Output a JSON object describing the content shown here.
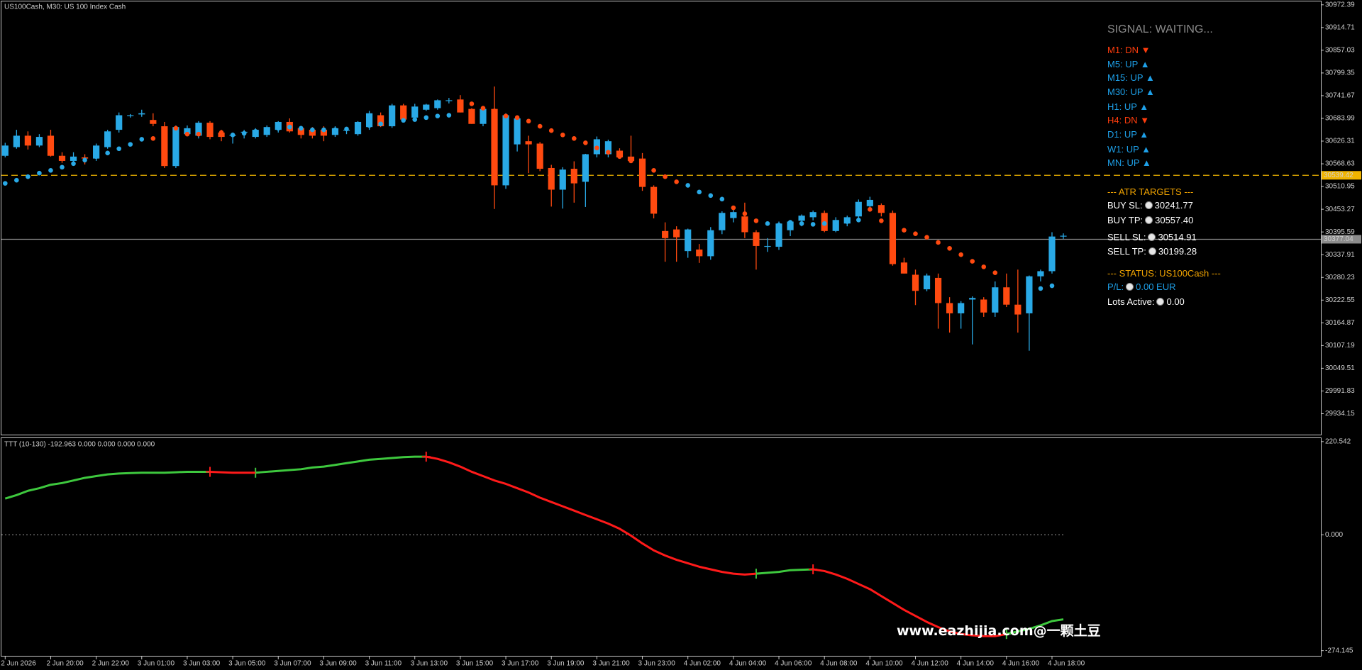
{
  "chart_data": [
    {
      "type": "candlestick",
      "title": "US100Cash, M30:  US 100 Index Cash",
      "categories": [
        "2 Jun 2026",
        null,
        null,
        null,
        "2 Jun 20:00",
        null,
        null,
        null,
        "2 Jun 22:00",
        null,
        null,
        null,
        "3 Jun 01:00",
        null,
        null,
        null,
        "3 Jun 03:00",
        null,
        null,
        null,
        "3 Jun 05:00",
        null,
        null,
        null,
        "3 Jun 07:00",
        null,
        null,
        null,
        "3 Jun 09:00",
        null,
        null,
        null,
        "3 Jun 11:00",
        null,
        null,
        null,
        "3 Jun 13:00",
        null,
        null,
        null,
        "3 Jun 15:00",
        null,
        null,
        null,
        "3 Jun 17:00",
        null,
        null,
        null,
        "3 Jun 19:00",
        null,
        null,
        null,
        "3 Jun 21:00",
        null,
        null,
        null,
        "3 Jun 23:00",
        null,
        null,
        null,
        "4 Jun 02:00",
        null,
        null,
        null,
        "4 Jun 04:00",
        null,
        null,
        null,
        "4 Jun 06:00",
        null,
        null,
        null,
        "4 Jun 08:00",
        null,
        null,
        null,
        "4 Jun 10:00",
        null,
        null,
        null,
        "4 Jun 12:00",
        null,
        null,
        null,
        "4 Jun 14:00",
        null,
        null,
        null,
        "4 Jun 16:00",
        null,
        null,
        null,
        "4 Jun 18:00",
        null
      ],
      "open": [
        30589,
        30611,
        30640,
        30615,
        30640,
        30589,
        30576,
        30585,
        30582,
        30611,
        30655,
        30690,
        30694,
        30680,
        30664,
        30563,
        30644,
        30640,
        30673,
        30648,
        30640,
        30648,
        30637,
        30642,
        30655,
        30675,
        30659,
        30655,
        30655,
        30642,
        30653,
        30644,
        30662,
        30692,
        30664,
        30717,
        30686,
        30706,
        30710,
        30729,
        30732,
        30708,
        30670,
        30708,
        30514,
        30618,
        30626,
        30620,
        30558,
        30503,
        30556,
        30523,
        30593,
        30593,
        30602,
        30587,
        30582,
        30510,
        30398,
        30402,
        30347,
        30351,
        30334,
        30400,
        30431,
        30435,
        30395,
        30360,
        30358,
        30400,
        30424,
        30433,
        30444,
        30398,
        30417,
        30435,
        30461,
        30464,
        30444,
        30318,
        30287,
        30250,
        30279,
        30215,
        30189,
        30224,
        30224,
        30191,
        30255,
        30211,
        30189,
        30283,
        30296,
        30384
      ],
      "high": [
        30622,
        30655,
        30651,
        30644,
        30655,
        30598,
        30598,
        30593,
        30620,
        30655,
        30699,
        30695,
        30706,
        30697,
        30675,
        30666,
        30666,
        30677,
        30677,
        30655,
        30648,
        30655,
        30659,
        30666,
        30677,
        30684,
        30664,
        30662,
        30664,
        30664,
        30659,
        30677,
        30703,
        30699,
        30721,
        30721,
        30721,
        30721,
        30732,
        30736,
        30743,
        30710,
        30712,
        30765,
        30697,
        30690,
        30640,
        30624,
        30566,
        30560,
        30575,
        30594,
        30638,
        30630,
        30608,
        30640,
        30596,
        30514,
        30420,
        30410,
        30404,
        30365,
        30408,
        30448,
        30455,
        30470,
        30400,
        30380,
        30422,
        30425,
        30440,
        30450,
        30450,
        30433,
        30437,
        30478,
        30485,
        30468,
        30450,
        30330,
        30300,
        30290,
        30290,
        30230,
        30220,
        30232,
        30230,
        30270,
        30290,
        30300,
        30285,
        30300,
        30395,
        30392
      ],
      "low": [
        30585,
        30607,
        30605,
        30611,
        30587,
        30571,
        30567,
        30567,
        30576,
        30607,
        30648,
        30686,
        30688,
        30664,
        30558,
        30558,
        30640,
        30633,
        30631,
        30626,
        30620,
        30633,
        30633,
        30637,
        30648,
        30648,
        30633,
        30633,
        30626,
        30637,
        30644,
        30640,
        30655,
        30662,
        30660,
        30681,
        30681,
        30703,
        30706,
        30722,
        30699,
        30670,
        30664,
        30454,
        30505,
        30600,
        30545,
        30550,
        30460,
        30455,
        30470,
        30459,
        30585,
        30585,
        30582,
        30575,
        30500,
        30430,
        30320,
        30320,
        30330,
        30317,
        30325,
        30390,
        30420,
        30380,
        30300,
        30345,
        30350,
        30385,
        30410,
        30425,
        30395,
        30395,
        30410,
        30430,
        30455,
        30435,
        30310,
        30290,
        30210,
        30245,
        30150,
        30140,
        30150,
        30110,
        30180,
        30180,
        30205,
        30140,
        30094,
        30270,
        30290,
        30378
      ],
      "close": [
        30615,
        30640,
        30615,
        30637,
        30589,
        30576,
        30587,
        30582,
        30615,
        30651,
        30692,
        30692,
        30697,
        30670,
        30563,
        30662,
        30659,
        30673,
        30637,
        30637,
        30642,
        30650,
        30655,
        30662,
        30675,
        30651,
        30642,
        30640,
        30640,
        30659,
        30655,
        30675,
        30697,
        30664,
        30717,
        30681,
        30714,
        30719,
        30730,
        30730,
        30699,
        30670,
        30708,
        30514,
        30692,
        30684,
        30618,
        30556,
        30503,
        30554,
        30519,
        30593,
        30631,
        30626,
        30585,
        30576,
        30510,
        30442,
        30380,
        30382,
        30402,
        30334,
        30400,
        30444,
        30446,
        30395,
        30360,
        30360,
        30417,
        30422,
        30437,
        30446,
        30398,
        30426,
        30433,
        30472,
        30477,
        30444,
        30314,
        30290,
        30246,
        30285,
        30215,
        30189,
        30215,
        30228,
        30191,
        30255,
        30211,
        30186,
        30283,
        30296,
        30384,
        30386
      ],
      "up_color": "#29a9e6",
      "down_color": "#ff4a10",
      "series": [
        {
          "color": "#29a9e6",
          "values": [
            30519,
            30527,
            30536,
            30545,
            30552,
            30560,
            30569,
            30578,
            30587,
            30596,
            30607,
            30618,
            30631,
            null,
            null,
            null,
            null,
            null,
            null,
            null,
            30642,
            30646,
            30651,
            30655,
            30659,
            30662,
            30659,
            30655,
            30655,
            30655,
            30657,
            30659,
            30666,
            30670,
            30675,
            30679,
            30681,
            30686,
            30690,
            30692,
            null,
            null,
            null,
            null,
            null,
            null,
            null,
            null,
            null,
            null,
            null,
            null,
            null,
            null,
            null,
            null,
            null,
            null,
            null,
            null,
            30514,
            30497,
            30488,
            30479,
            null,
            null,
            null,
            30417,
            30413,
            30420,
            30417,
            30415,
            30417,
            30420,
            30422,
            30426,
            null,
            null,
            null,
            null,
            null,
            null,
            null,
            null,
            null,
            null,
            null,
            null,
            null,
            null,
            30246,
            30252,
            30259,
            null
          ]
        },
        {
          "color": "#ff4a10",
          "values": [
            null,
            null,
            null,
            null,
            null,
            null,
            null,
            null,
            null,
            null,
            null,
            null,
            null,
            30633,
            30655,
            30659,
            30644,
            30644,
            30648,
            30648,
            null,
            null,
            null,
            null,
            null,
            null,
            null,
            null,
            null,
            null,
            null,
            null,
            null,
            null,
            null,
            null,
            null,
            null,
            null,
            null,
            30725,
            30721,
            30710,
            30703,
            30690,
            30686,
            30677,
            30664,
            30653,
            30642,
            30633,
            30622,
            30609,
            30598,
            30587,
            30576,
            30565,
            30552,
            30536,
            30523,
            null,
            null,
            null,
            null,
            30457,
            30442,
            30424,
            null,
            null,
            null,
            null,
            null,
            null,
            null,
            null,
            null,
            30453,
            30424,
            30409,
            30400,
            30391,
            30382,
            30369,
            30354,
            30338,
            30321,
            30307,
            30292,
            null,
            null,
            null,
            null,
            null,
            null
          ]
        }
      ],
      "price_lines": [
        {
          "value": 30539.42,
          "color": "#f0b400",
          "style": "dashed"
        },
        {
          "value": 30377.04,
          "color": "#8c8c8c",
          "style": "solid"
        }
      ],
      "ylim": [
        29881,
        30981
      ],
      "yticks": [
        30972.39,
        30914.71,
        30857.03,
        30799.35,
        30741.67,
        30683.99,
        30626.31,
        30568.63,
        30510.95,
        30453.27,
        30395.59,
        30337.91,
        30280.23,
        30222.55,
        30164.87,
        30107.19,
        30049.51,
        29991.83,
        29934.15
      ]
    },
    {
      "type": "line",
      "title": "TTT (10-130) -192.963 0.000 0.000 0.000 0.000",
      "series": [
        {
          "color": "#3ec83e",
          "values": [
            85.8,
            93.9,
            104.1,
            110.3,
            118.4,
            122.5,
            128.6,
            134.8,
            138.9,
            142.9,
            145.0,
            146.0,
            147.0,
            147.0,
            147.0,
            148.0,
            149.1,
            149.1,
            149.1,
            null,
            null,
            null,
            147.0,
            149.1,
            151.1,
            153.2,
            155.2,
            159.3,
            161.3,
            165.4,
            169.5,
            173.6,
            177.7,
            179.7,
            181.7,
            183.8,
            184.8,
            184.8,
            null,
            null,
            null,
            null,
            null,
            null,
            null,
            null,
            null,
            null,
            null,
            null,
            null,
            null,
            null,
            null,
            null,
            null,
            null,
            null,
            null,
            null,
            null,
            null,
            null,
            null,
            null,
            null,
            -91.9,
            -89.8,
            -87.8,
            -83.7,
            -82.7,
            -81.7,
            null,
            null,
            null,
            null,
            null,
            null,
            null,
            null,
            null,
            null,
            null,
            null,
            null,
            null,
            null,
            null,
            -234.8,
            -228.7,
            -222.6,
            -214.4,
            -204.2,
            -200.1
          ]
        },
        {
          "color": "#ff1a1a",
          "values": [
            null,
            null,
            null,
            null,
            null,
            null,
            null,
            null,
            null,
            null,
            null,
            null,
            null,
            null,
            null,
            null,
            null,
            null,
            149.1,
            148.0,
            147.0,
            147.0,
            147.0,
            null,
            null,
            null,
            null,
            null,
            null,
            null,
            null,
            null,
            null,
            null,
            null,
            null,
            null,
            184.8,
            179.7,
            171.5,
            161.3,
            149.1,
            138.9,
            128.6,
            120.5,
            110.3,
            100.1,
            87.8,
            77.6,
            67.4,
            57.2,
            46.9,
            36.8,
            26.5,
            14.3,
            -2.0,
            -20.4,
            -36.8,
            -49.0,
            -59.2,
            -67.4,
            -75.6,
            -81.7,
            -87.8,
            -91.9,
            -94.0,
            -91.9,
            null,
            null,
            null,
            null,
            -81.7,
            -85.8,
            -94.0,
            -104.1,
            -116.4,
            -128.6,
            -145.0,
            -161.3,
            -177.7,
            -191.9,
            -206.2,
            -218.5,
            -228.7,
            -234.8,
            -237.9,
            -239.9,
            -239.9,
            -234.8,
            null,
            null,
            null,
            null,
            null
          ]
        }
      ],
      "ylim": [
        -286.4,
        228.7
      ],
      "yticks": [
        220.542,
        {
          "value": 0,
          "label": "0.000"
        },
        -274.145
      ],
      "zero_line": true
    }
  ],
  "panel": {
    "signal": "SIGNAL: WAITING...",
    "timeframes": [
      {
        "text": "M1: DN ▼",
        "color": "#ff3d0d"
      },
      {
        "text": "M5: UP ▲",
        "color": "#1ea0e8"
      },
      {
        "text": "M15: UP ▲",
        "color": "#1ea0e8"
      },
      {
        "text": "M30: UP ▲",
        "color": "#1ea0e8"
      },
      {
        "text": "H1: UP ▲",
        "color": "#1ea0e8"
      },
      {
        "text": "H4: DN ▼",
        "color": "#ff3d0d"
      },
      {
        "text": "D1: UP ▲",
        "color": "#1ea0e8"
      },
      {
        "text": "W1: UP ▲",
        "color": "#1ea0e8"
      },
      {
        "text": "MN: UP ▲",
        "color": "#1ea0e8"
      }
    ],
    "atr_title": "--- ATR TARGETS ---",
    "targets": [
      {
        "label": "BUY SL:",
        "value": "30241.77"
      },
      {
        "label": "BUY TP:",
        "value": "30557.40"
      },
      {
        "label": "SELL SL:",
        "value": "30514.91"
      },
      {
        "label": "SELL TP:",
        "value": "30199.28"
      }
    ],
    "status_title": "--- STATUS: US100Cash ---",
    "pl": {
      "label": "P/L:",
      "value": "0.00 EUR",
      "color": "#1ea0e8"
    },
    "lots": {
      "label": "Lots Active:",
      "value": "0.00",
      "color": "#ffffff"
    }
  },
  "watermark": "www.eazhijia.com@一颗土豆"
}
